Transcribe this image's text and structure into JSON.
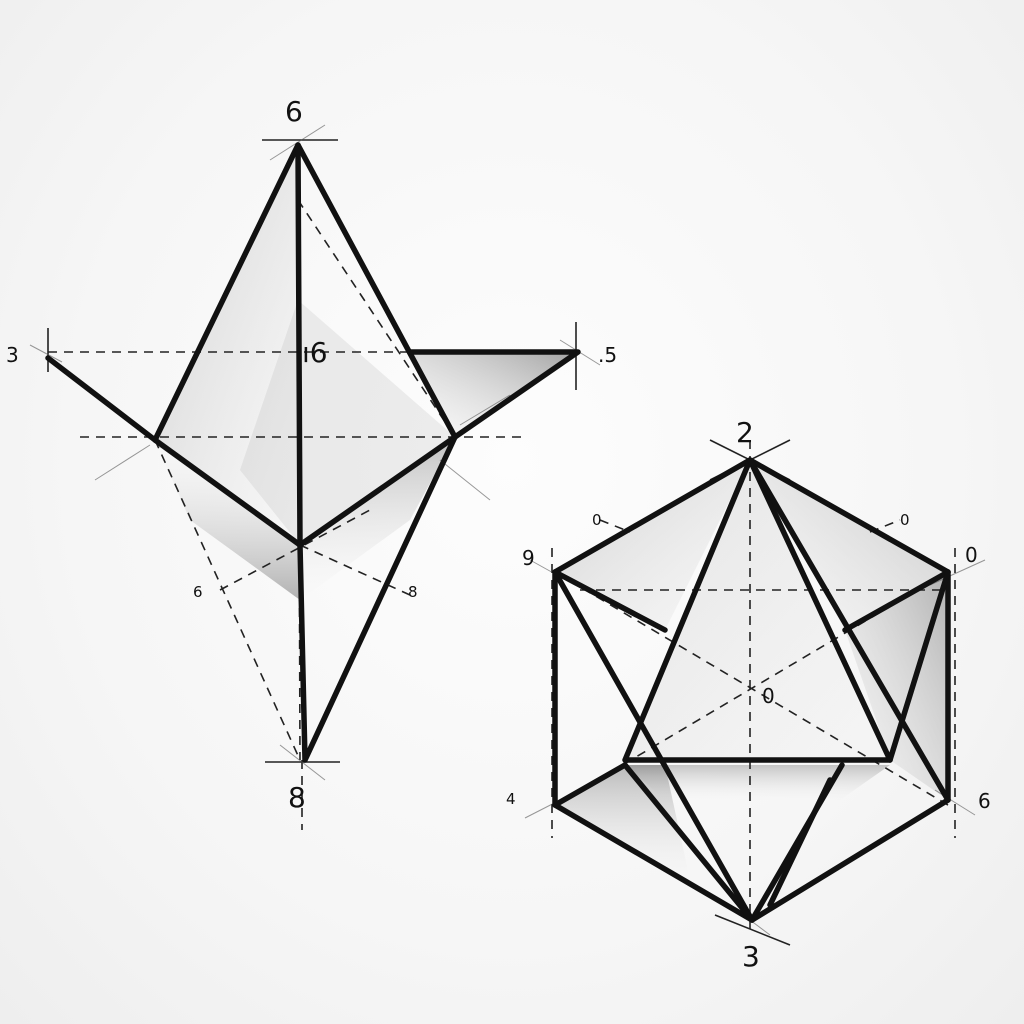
{
  "left_figure": {
    "labels": {
      "top": "6",
      "left": "3",
      "center": "ı6",
      "right": ".5",
      "lower_left": "6",
      "lower_right": "8",
      "bottom": "8"
    }
  },
  "right_figure": {
    "labels": {
      "top": "2",
      "upper_left_outer": "0",
      "upper_right_outer": "0",
      "left": "9",
      "right": "0",
      "center": "0",
      "bottom_left": "4",
      "bottom_right": "6",
      "bottom": "3"
    }
  }
}
